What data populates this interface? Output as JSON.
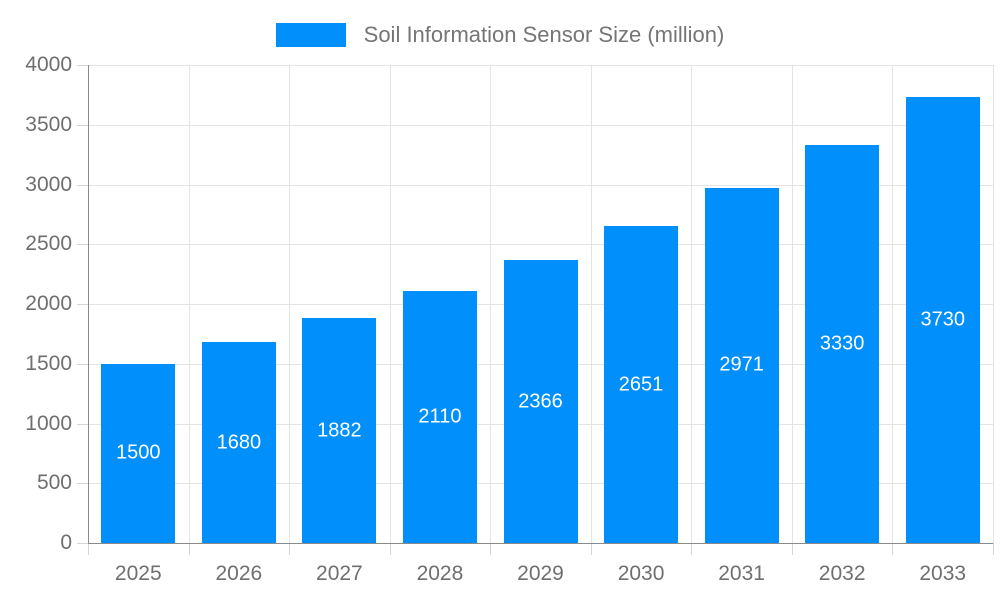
{
  "chart_data": {
    "type": "bar",
    "title": "Soil Information Sensor Size (million)",
    "categories": [
      "2025",
      "2026",
      "2027",
      "2028",
      "2029",
      "2030",
      "2031",
      "2032",
      "2033"
    ],
    "values": [
      1500,
      1680,
      1882,
      2110,
      2366,
      2651,
      2971,
      3330,
      3730
    ],
    "xlabel": "",
    "ylabel": "",
    "ylim": [
      0,
      4000
    ],
    "yticks": [
      0,
      500,
      1000,
      1500,
      2000,
      2500,
      3000,
      3500,
      4000
    ],
    "grid": true,
    "legend_position": "top",
    "colors": {
      "bar": "#008FFB",
      "bar_label": "#ffffff",
      "axis_line": "#8a8a8a",
      "gridline": "#e4e4e4",
      "tick": "#d4d4d4",
      "tick_label": "#6f6f6f",
      "legend_text": "#757575"
    }
  }
}
